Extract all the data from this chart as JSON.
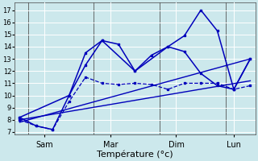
{
  "background_color": "#cce8ec",
  "grid_color": "#ffffff",
  "line_color": "#0000bb",
  "xlabel": "Température (°c)",
  "xlabel_fontsize": 8,
  "yticks": [
    7,
    8,
    9,
    10,
    11,
    12,
    13,
    14,
    15,
    16,
    17
  ],
  "ylim": [
    6.8,
    17.6
  ],
  "xlim": [
    -0.3,
    14.3
  ],
  "xtick_labels": [
    "Sam",
    "Mar",
    "Dim",
    "Lun"
  ],
  "xtick_positions": [
    1.5,
    5.5,
    9.5,
    13.0
  ],
  "vline_positions": [
    0.5,
    4.5,
    8.5,
    12.5
  ],
  "series": [
    {
      "x": [
        0,
        1,
        2,
        3,
        4,
        5,
        6,
        7,
        8,
        9,
        10,
        11,
        12,
        13,
        14
      ],
      "y": [
        8.2,
        7.5,
        7.2,
        10.0,
        12.5,
        14.5,
        14.2,
        12.0,
        13.3,
        14.0,
        13.6,
        11.8,
        10.8,
        10.5,
        13.0
      ],
      "style": "-",
      "marker": "s",
      "markersize": 2.0,
      "linewidth": 1.1
    },
    {
      "x": [
        0,
        14
      ],
      "y": [
        7.8,
        13.0
      ],
      "style": "-",
      "marker": null,
      "markersize": 0,
      "linewidth": 1.0
    },
    {
      "x": [
        0,
        14
      ],
      "y": [
        8.0,
        11.2
      ],
      "style": "-",
      "marker": null,
      "markersize": 0,
      "linewidth": 1.0
    },
    {
      "x": [
        0,
        1,
        2,
        3,
        4,
        5,
        6,
        7,
        8,
        9,
        10,
        11,
        12,
        13,
        14
      ],
      "y": [
        8.0,
        7.5,
        7.2,
        9.5,
        11.5,
        11.0,
        10.9,
        11.0,
        10.9,
        10.5,
        11.0,
        11.0,
        11.0,
        10.5,
        10.8
      ],
      "style": "--",
      "marker": "s",
      "markersize": 1.5,
      "linewidth": 0.9
    },
    {
      "x": [
        0,
        3,
        4,
        5,
        7,
        9,
        10,
        11,
        12,
        13,
        14
      ],
      "y": [
        8.2,
        10.0,
        13.5,
        14.5,
        12.0,
        14.0,
        14.9,
        17.0,
        15.3,
        10.5,
        13.0
      ],
      "style": "-",
      "marker": "s",
      "markersize": 2.0,
      "linewidth": 1.1
    }
  ]
}
